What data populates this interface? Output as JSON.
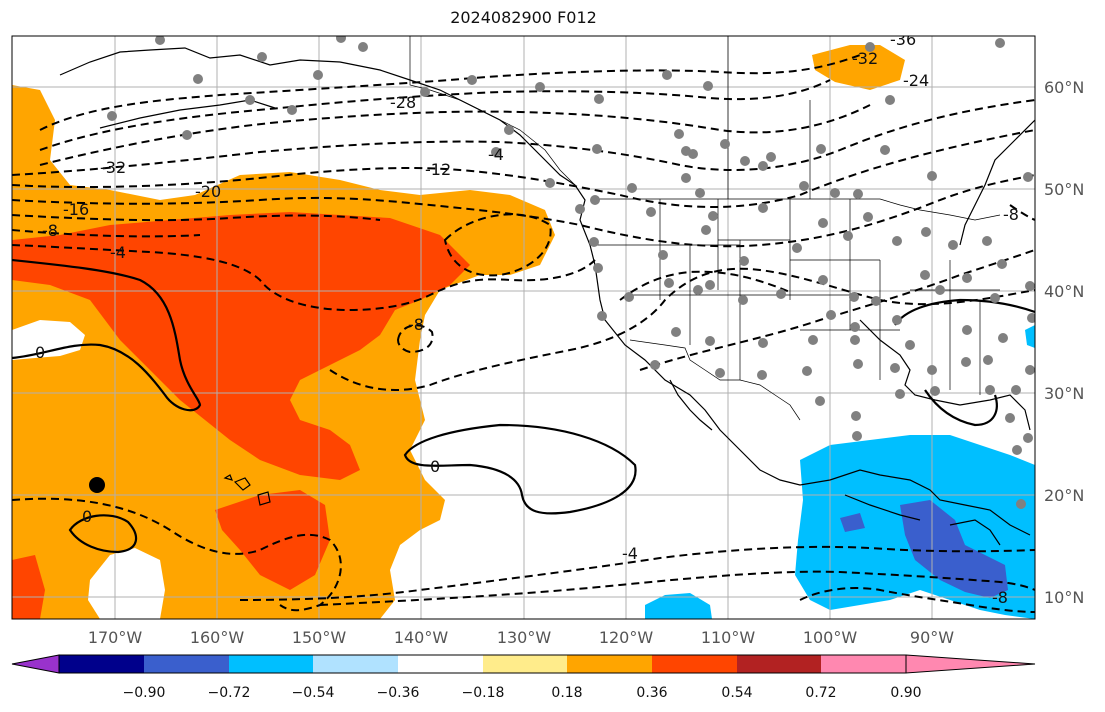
{
  "title": "2024082900 F012",
  "lon_labels": [
    "170°W",
    "160°W",
    "150°W",
    "140°W",
    "130°W",
    "120°W",
    "110°W",
    "100°W",
    "90°W"
  ],
  "lat_labels": [
    "60°N",
    "50°N",
    "40°N",
    "30°N",
    "20°N",
    "10°N"
  ],
  "colorbar": {
    "ticks": [
      "−0.90",
      "−0.72",
      "−0.54",
      "−0.36",
      "−0.18",
      "0.18",
      "0.36",
      "0.54",
      "0.72",
      "0.90"
    ],
    "colors": [
      "#9932cc",
      "#00008b",
      "#3a5fcd",
      "#00bfff",
      "#b0e2ff",
      "#ffffff",
      "#ffec8b",
      "#ffa500",
      "#ff4500",
      "#b22222",
      "#ff88b0"
    ]
  },
  "contour_labels": [
    "-32",
    "-36",
    "-24",
    "-28",
    "-4",
    "-12",
    "-32",
    "-20",
    "-16",
    "-8",
    "-4",
    "-8",
    "0",
    "0",
    "0",
    "-4",
    "-8",
    "-8"
  ],
  "colors": {
    "positive_orange": "#ffa500",
    "positive_red": "#ff4500",
    "negative_blue": "#00bfff",
    "negative_dark_blue": "#3a5fcd",
    "station_dot": "#808080"
  }
}
